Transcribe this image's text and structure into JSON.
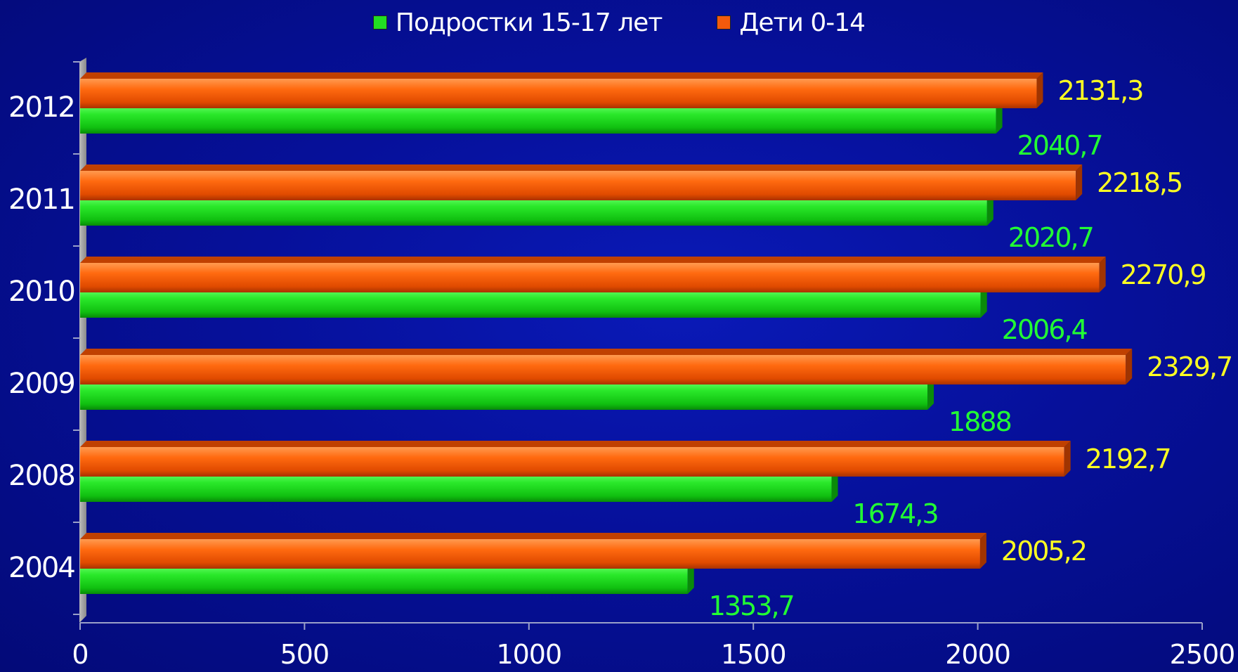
{
  "chart_data": {
    "type": "bar",
    "orientation": "horizontal",
    "categories": [
      "2012",
      "2011",
      "2010",
      "2009",
      "2008",
      "2004"
    ],
    "series": [
      {
        "name": "Дети 0-14",
        "values": [
          2131.3,
          2218.5,
          2270.9,
          2329.7,
          2192.7,
          2005.2
        ],
        "labels": [
          "2131,3",
          "2218,5",
          "2270,9",
          "2329,7",
          "2192,7",
          "2005,2"
        ],
        "color": "#f25a0c",
        "label_color": "#ffff22"
      },
      {
        "name": "Подростки 15-17 лет",
        "values": [
          2040.7,
          2020.7,
          2006.4,
          1888,
          1674.3,
          1353.7
        ],
        "labels": [
          "2040,7",
          "2020,7",
          "2006,4",
          "1888",
          "1674,3",
          "1353,7"
        ],
        "color": "#22dd22",
        "label_color": "#22ff33"
      }
    ],
    "xlim": [
      0,
      2500
    ],
    "xticks": [
      "0",
      "500",
      "1000",
      "1500",
      "2000",
      "2500"
    ],
    "grid": false,
    "legend_position": "top",
    "legend": [
      "Подростки 15-17 лет",
      "Дети 0-14"
    ]
  }
}
